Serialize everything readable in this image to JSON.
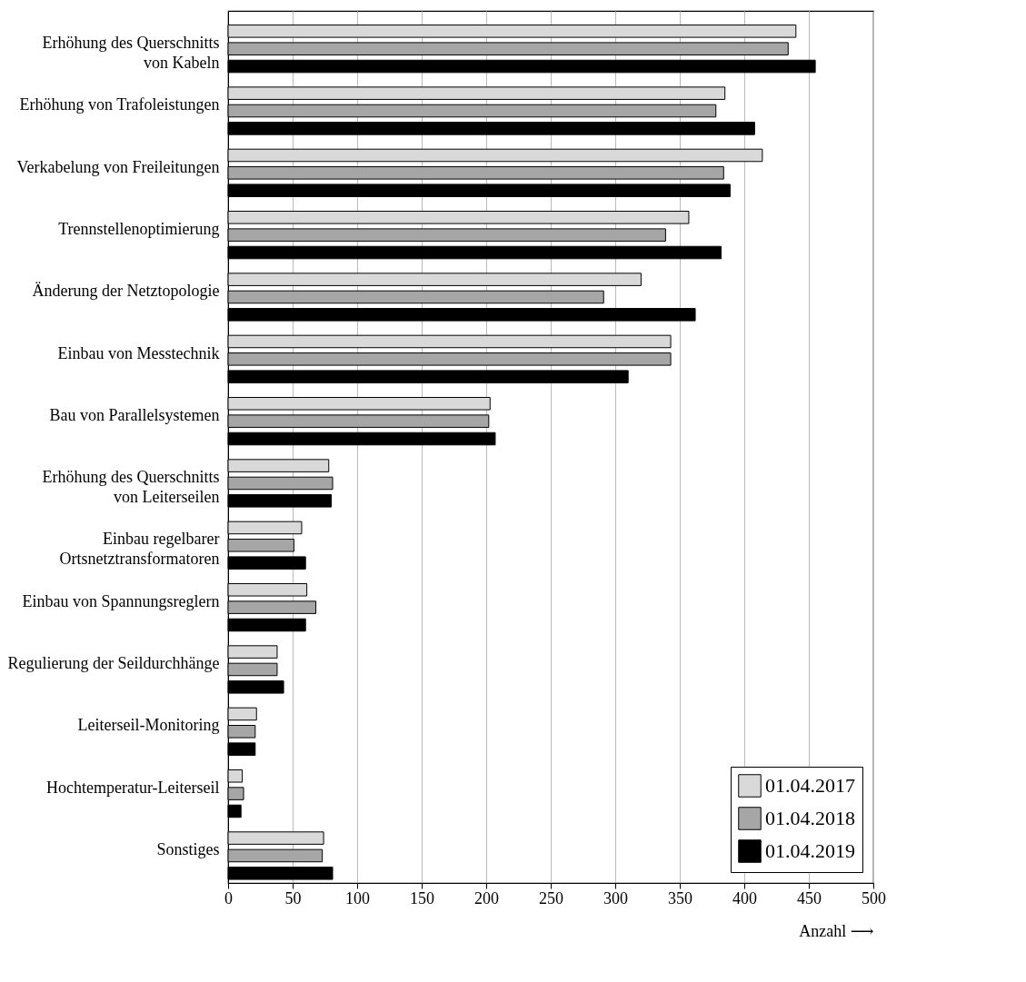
{
  "chart_data": {
    "type": "bar",
    "orientation": "horizontal",
    "xlabel": "Anzahl ⟶",
    "categories": [
      "Erhöhung des Querschnitts von Kabeln",
      "Erhöhung von Trafoleistungen",
      "Verkabelung von Freileitungen",
      "Trennstellenoptimierung",
      "Änderung der Netztopologie",
      "Einbau von Messtechnik",
      "Bau von Parallelsystemen",
      "Erhöhung des Querschnitts von Leiterseilen",
      "Einbau regelbarer Ortsnetztransformatoren",
      "Einbau von Spannungsreglern",
      "Regulierung der Seildurchhänge",
      "Leiterseil-Monitoring",
      "Hochtemperatur-Leiterseil",
      "Sonstiges"
    ],
    "series": [
      {
        "name": "01.04.2017",
        "color": "#d9d9d9",
        "values": [
          440,
          385,
          414,
          357,
          320,
          343,
          203,
          78,
          57,
          61,
          38,
          22,
          11,
          74
        ]
      },
      {
        "name": "01.04.2018",
        "color": "#a6a6a6",
        "values": [
          434,
          378,
          384,
          339,
          291,
          343,
          202,
          81,
          51,
          68,
          38,
          21,
          12,
          73
        ]
      },
      {
        "name": "01.04.2019",
        "color": "#000000",
        "values": [
          455,
          408,
          389,
          382,
          362,
          310,
          207,
          80,
          60,
          60,
          43,
          21,
          10,
          81
        ]
      }
    ],
    "xlim": [
      0,
      500
    ],
    "xticks": [
      0,
      50,
      100,
      150,
      200,
      250,
      300,
      350,
      400,
      450,
      500
    ],
    "grid": "x",
    "legend": "bottom right"
  }
}
